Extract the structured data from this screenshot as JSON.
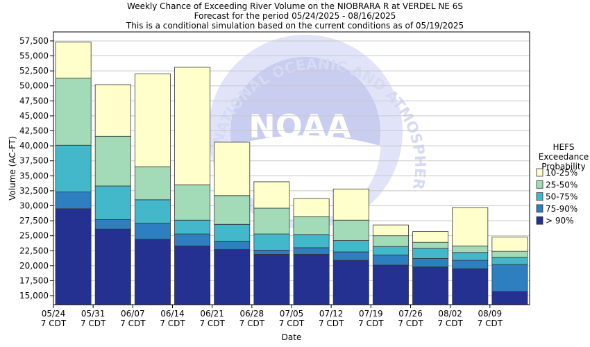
{
  "chart_data": {
    "type": "bar",
    "stacked": true,
    "title_lines": [
      "Weekly Chance of Exceeding River Volume on the NIOBRARA R at VERDEL NE 6S",
      "Forecast for the period 05/24/2025 - 08/16/2025",
      "This is a conditional simulation based on the current conditions as of 05/19/2025"
    ],
    "xlabel": "Date",
    "ylabel": "Volume (AC-FT)",
    "ylim": [
      13500,
      59000
    ],
    "y_ticks": [
      15000,
      17500,
      20000,
      22500,
      25000,
      27500,
      30000,
      32500,
      35000,
      37500,
      40000,
      42500,
      45000,
      47500,
      50000,
      52500,
      55000,
      57500
    ],
    "y_tick_labels": [
      "15,000",
      "17,500",
      "20,000",
      "22,500",
      "25,000",
      "27,500",
      "30,000",
      "32,500",
      "35,000",
      "37,500",
      "40,000",
      "42,500",
      "45,000",
      "47,500",
      "50,000",
      "52,500",
      "55,000",
      "57,500"
    ],
    "x_tick_labels": [
      [
        "05/24",
        "7 CDT"
      ],
      [
        "05/31",
        "7 CDT"
      ],
      [
        "06/07",
        "7 CDT"
      ],
      [
        "06/14",
        "7 CDT"
      ],
      [
        "06/21",
        "7 CDT"
      ],
      [
        "06/28",
        "7 CDT"
      ],
      [
        "07/05",
        "7 CDT"
      ],
      [
        "07/12",
        "7 CDT"
      ],
      [
        "07/19",
        "7 CDT"
      ],
      [
        "07/26",
        "7 CDT"
      ],
      [
        "08/02",
        "7 CDT"
      ],
      [
        "08/09",
        "7 CDT"
      ]
    ],
    "grid": "horizontal",
    "legend_position": "right",
    "legend_title": [
      "HEFS",
      "Exceedance",
      "Probability"
    ],
    "series": [
      {
        "name": "> 90%",
        "color": "#243191",
        "tops": [
          29500,
          26100,
          24400,
          23300,
          22700,
          21900,
          21900,
          20900,
          20100,
          19800,
          19500,
          15700
        ]
      },
      {
        "name": "75-90%",
        "color": "#2e7fc0",
        "tops": [
          32300,
          27700,
          27100,
          25300,
          24100,
          22600,
          23000,
          22300,
          21800,
          21200,
          20900,
          20200
        ]
      },
      {
        "name": "50-75%",
        "color": "#43b8cb",
        "tops": [
          40100,
          33300,
          31000,
          27600,
          26900,
          25300,
          25200,
          24200,
          23200,
          22900,
          22200,
          21400
        ]
      },
      {
        "name": "25-50%",
        "color": "#a3dbb8",
        "tops": [
          51300,
          41600,
          36500,
          33500,
          31700,
          29600,
          28200,
          27600,
          25000,
          23900,
          23300,
          22400
        ]
      },
      {
        "name": "10-25%",
        "color": "#ffffcc",
        "tops": [
          57300,
          50200,
          52000,
          53100,
          40600,
          34000,
          31200,
          32800,
          26800,
          25700,
          29700,
          24800
        ]
      }
    ],
    "legend_order": [
      "10-25%",
      "25-50%",
      "50-75%",
      "75-90%",
      "> 90%"
    ],
    "watermark_text": "NATIONAL OCEANIC AND ATMOSPHERIC ADMINISTRATION",
    "watermark_logo_text": "NOAA"
  }
}
